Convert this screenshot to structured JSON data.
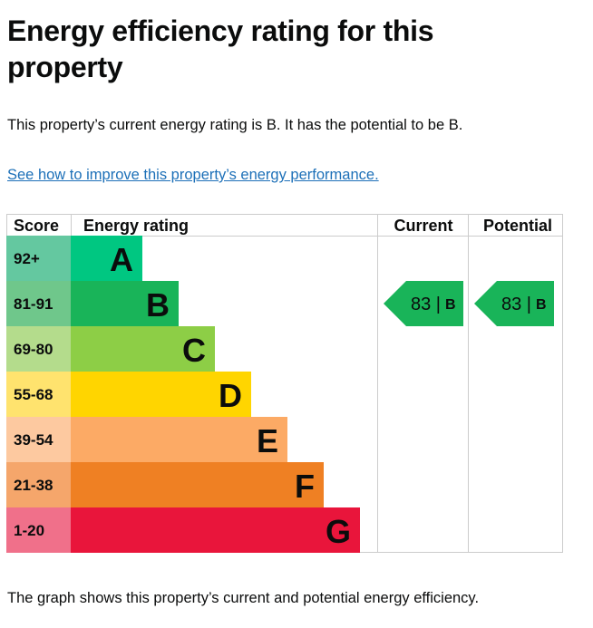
{
  "page": {
    "title": "Energy efficiency rating for this property",
    "intro": "This property’s current energy rating is B. It has the potential to be B.",
    "link": "See how to improve this property’s energy performance.",
    "footer": "The graph shows this property’s current and potential energy efficiency."
  },
  "chart_data": {
    "type": "bar",
    "title": "Energy efficiency rating",
    "headers": {
      "score": "Score",
      "rating": "Energy rating",
      "current": "Current",
      "potential": "Potential"
    },
    "bands": [
      {
        "letter": "A",
        "score": "92+",
        "color": "#00c781",
        "score_bg": "#64c8a0"
      },
      {
        "letter": "B",
        "score": "81-91",
        "color": "#19b459",
        "score_bg": "#6fc78b"
      },
      {
        "letter": "C",
        "score": "69-80",
        "color": "#8dce46",
        "score_bg": "#b4dc8c"
      },
      {
        "letter": "D",
        "score": "55-68",
        "color": "#ffd500",
        "score_bg": "#ffe36e"
      },
      {
        "letter": "E",
        "score": "39-54",
        "color": "#fcaa65",
        "score_bg": "#fdc9a0"
      },
      {
        "letter": "F",
        "score": "21-38",
        "color": "#ef8023",
        "score_bg": "#f5a66b"
      },
      {
        "letter": "G",
        "score": "1-20",
        "color": "#e9153b",
        "score_bg": "#f0708a"
      }
    ],
    "current": {
      "value": 83,
      "letter": "B",
      "color": "#19b459"
    },
    "potential": {
      "value": 83,
      "letter": "B",
      "color": "#19b459"
    }
  }
}
